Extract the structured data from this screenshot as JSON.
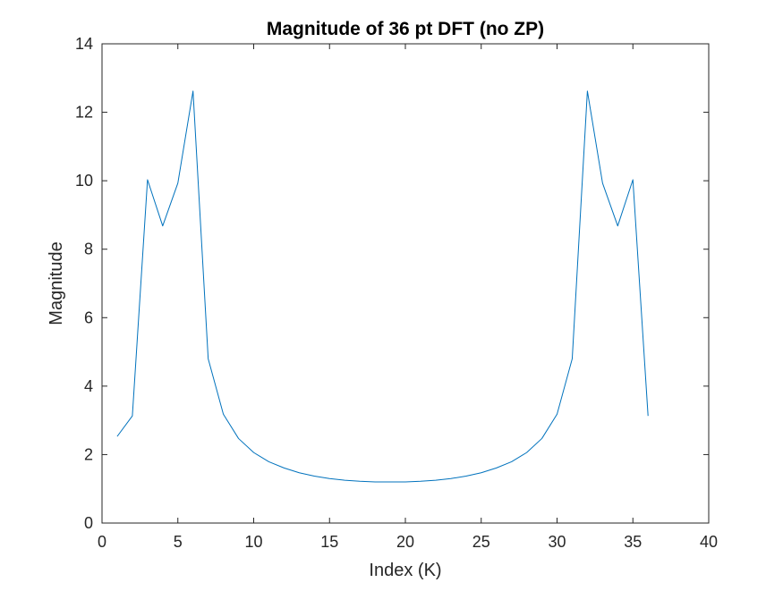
{
  "chart_data": {
    "type": "line",
    "title": "Magnitude of 36 pt DFT (no ZP)",
    "xlabel": "Index (K)",
    "ylabel": "Magnitude",
    "xlim": [
      0,
      40
    ],
    "ylim": [
      0,
      14
    ],
    "xticks": [
      0,
      5,
      10,
      15,
      20,
      25,
      30,
      35,
      40
    ],
    "yticks": [
      0,
      2,
      4,
      6,
      8,
      10,
      12,
      14
    ],
    "grid": false,
    "legend": "none",
    "series": [
      {
        "color": "#0072BD",
        "x": [
          1,
          2,
          3,
          4,
          5,
          6,
          7,
          8,
          9,
          10,
          11,
          12,
          13,
          14,
          15,
          16,
          17,
          18,
          19,
          20,
          21,
          22,
          23,
          24,
          25,
          26,
          27,
          28,
          29,
          30,
          31,
          32,
          33,
          34,
          35,
          36
        ],
        "y": [
          2.53,
          3.13,
          10.03,
          8.68,
          9.93,
          12.62,
          4.8,
          3.18,
          2.47,
          2.06,
          1.79,
          1.61,
          1.47,
          1.37,
          1.3,
          1.25,
          1.22,
          1.2,
          1.2,
          1.2,
          1.22,
          1.25,
          1.3,
          1.37,
          1.47,
          1.61,
          1.79,
          2.06,
          2.47,
          3.18,
          4.8,
          12.62,
          9.93,
          8.68,
          10.03,
          3.13
        ]
      }
    ]
  }
}
